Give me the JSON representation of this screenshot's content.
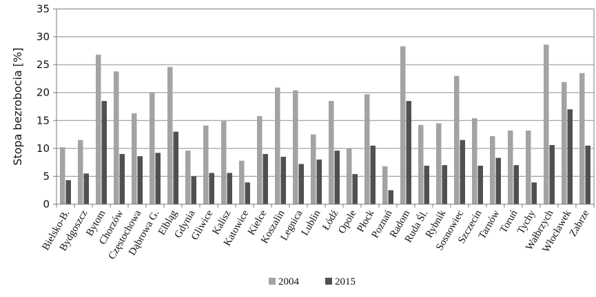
{
  "chart_data": {
    "type": "bar",
    "title": "",
    "xlabel": "",
    "ylabel": "Stopa bezrobocia [%]",
    "ylim": [
      0,
      35
    ],
    "yticks": [
      0,
      5,
      10,
      15,
      20,
      25,
      30,
      35
    ],
    "grid": "horizontal",
    "legend_position": "bottom",
    "categories": [
      "Bielsko-B.",
      "Bydgoszcz",
      "Bytom",
      "Chorzów",
      "Częstochowa",
      "Dąbrowa G.",
      "Elbląg",
      "Gdynia",
      "Gliwice",
      "Kalisz",
      "Katowice",
      "Kielce",
      "Koszalin",
      "Legnica",
      "Lublin",
      "Łódź",
      "Opole",
      "Płock",
      "Poznań",
      "Radom",
      "Ruda Śl.",
      "Rybnik",
      "Sosnowiec",
      "Szczecin",
      "Tarnów",
      "Toruń",
      "Tychy",
      "Wałbrzych",
      "Włocławek",
      "Zabrze"
    ],
    "series": [
      {
        "name": "2004",
        "color": "#a3a3a3",
        "values": [
          10.2,
          11.5,
          26.8,
          23.8,
          16.3,
          20.0,
          24.6,
          9.6,
          14.1,
          14.9,
          7.8,
          15.8,
          20.9,
          20.4,
          12.5,
          18.5,
          10.0,
          19.7,
          6.8,
          28.3,
          14.2,
          14.5,
          23.0,
          15.4,
          12.2,
          13.2,
          13.2,
          28.6,
          21.9,
          23.5
        ]
      },
      {
        "name": "2015",
        "color": "#505050",
        "values": [
          4.3,
          5.5,
          18.5,
          9.0,
          8.6,
          9.2,
          13.0,
          5.0,
          5.6,
          5.6,
          3.9,
          9.0,
          8.5,
          7.2,
          8.0,
          9.6,
          5.4,
          10.5,
          2.5,
          18.5,
          6.9,
          7.0,
          11.5,
          6.9,
          8.3,
          7.0,
          3.9,
          10.6,
          17.0,
          10.5
        ]
      }
    ]
  }
}
